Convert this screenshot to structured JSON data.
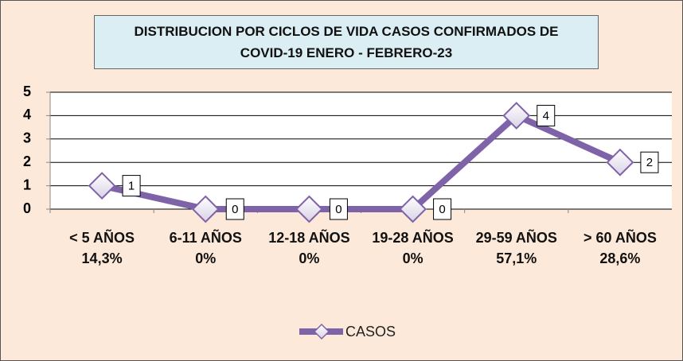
{
  "chart_data": {
    "type": "line",
    "title": "DISTRIBUCION POR CICLOS DE VIDA CASOS CONFIRMADOS DE COVID-19 ENERO - FEBRERO-23",
    "categories": [
      "< 5 AÑOS 14,3%",
      "6-11 AÑOS 0%",
      "12-18 AÑOS 0%",
      "19-28 AÑOS 0%",
      "29-59 AÑOS 57,1%",
      "> 60 AÑOS 28,6%"
    ],
    "series": [
      {
        "name": "CASOS",
        "color": "#7f63a8",
        "values": [
          1,
          0,
          0,
          0,
          4,
          2
        ]
      }
    ],
    "ylim": [
      0,
      5
    ],
    "yticks": [
      0,
      1,
      2,
      3,
      4,
      5
    ],
    "grid": true,
    "legend": "bottom"
  }
}
